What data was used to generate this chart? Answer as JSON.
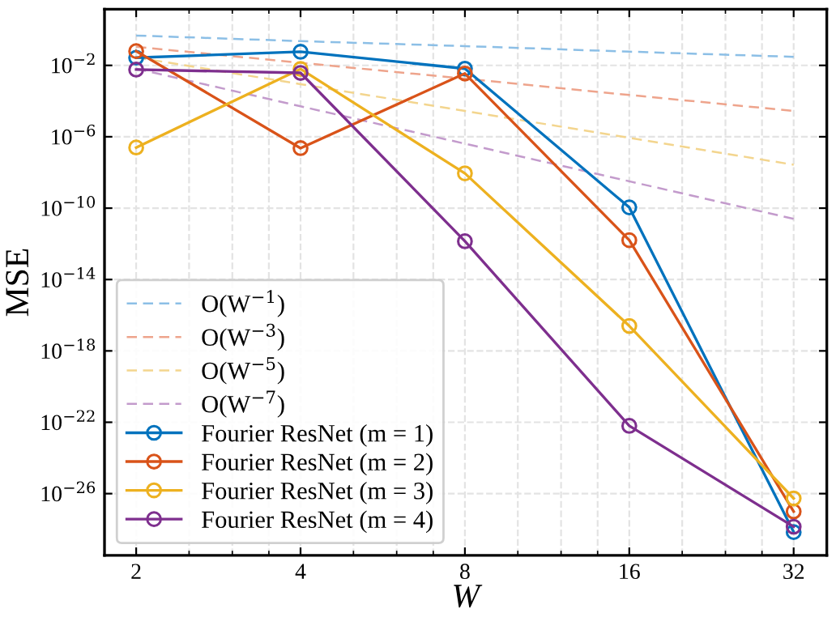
{
  "chart_data": {
    "type": "line",
    "xlabel": "W",
    "ylabel": "MSE",
    "log": "xy",
    "grid": true,
    "legend": "bottom left",
    "marker": "circle",
    "x": [
      2,
      4,
      8,
      16,
      32
    ],
    "xlim": [
      1.75,
      36.8
    ],
    "xticks": [
      2,
      4,
      8,
      16,
      32
    ],
    "ylim": [
      3.5e-30,
      14
    ],
    "yticks": [
      {
        "value": 0.01,
        "label": "10$^{−2}$"
      },
      {
        "value": 1e-06,
        "label": "10$^{−6}$"
      },
      {
        "value": 1e-10,
        "label": "10$^{−10}$"
      },
      {
        "value": 1e-14,
        "label": "10$^{−14}$"
      },
      {
        "value": 1e-18,
        "label": "10$^{−18}$"
      },
      {
        "value": 1e-22,
        "label": "10$^{−22}$"
      },
      {
        "value": 1e-26,
        "label": "10$^{−26}$"
      }
    ],
    "series": [
      {
        "name": "O(W$^{−1}$)",
        "color": "#8cbfe6",
        "line_style": "dashed",
        "marker": "none",
        "values": [
          0.47,
          0.23,
          0.12,
          0.059,
          0.03
        ]
      },
      {
        "name": "O(W$^{−3}$)",
        "color": "#eea48c",
        "line_style": "dashed",
        "marker": "none",
        "values": [
          0.11,
          0.014,
          0.0018,
          0.00022,
          2.8e-05
        ]
      },
      {
        "name": "O(W$^{−5}$)",
        "color": "#f3d58e",
        "line_style": "dashed",
        "marker": "none",
        "values": [
          0.028,
          0.00089,
          2.8e-05,
          8.7e-07,
          2.7e-08
        ]
      },
      {
        "name": "O(W$^{−7}$)",
        "color": "#c39bcc",
        "line_style": "dashed",
        "marker": "none",
        "values": [
          0.0066,
          5.1e-05,
          4.1e-07,
          3.2e-09,
          2.5e-11
        ]
      },
      {
        "name": "Fourier ResNet (m = 1)",
        "color": "#0072bd",
        "line_style": "solid",
        "values": [
          0.027,
          0.058,
          0.0066,
          1.1e-10,
          7e-29
        ]
      },
      {
        "name": "Fourier ResNet (m = 2)",
        "color": "#d95319",
        "line_style": "solid",
        "values": [
          0.063,
          2.3e-07,
          0.0035,
          1.6e-12,
          1e-27
        ]
      },
      {
        "name": "Fourier ResNet (m = 3)",
        "color": "#edb120",
        "line_style": "solid",
        "values": [
          2.5e-07,
          0.0063,
          8.9e-09,
          2.5e-17,
          5.4e-27
        ]
      },
      {
        "name": "Fourier ResNet (m = 4)",
        "color": "#7e2f8e",
        "line_style": "solid",
        "values": [
          0.0058,
          0.0038,
          1.4e-12,
          6.3e-23,
          1.4e-28
        ]
      }
    ]
  }
}
